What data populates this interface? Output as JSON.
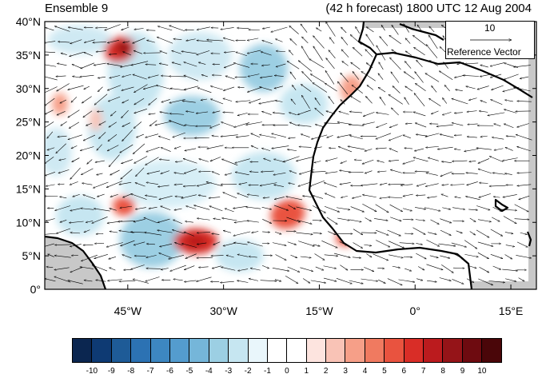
{
  "title": {
    "left": "Ensemble 9",
    "right": "(42 h forecast) 1800 UTC 12 Aug 2004"
  },
  "map": {
    "lat_labels": [
      "40°N",
      "35°N",
      "30°N",
      "25°N",
      "20°N",
      "15°N",
      "10°N",
      "5°N",
      "0°"
    ],
    "lon_labels": [
      "45°W",
      "30°W",
      "15°W",
      "0°",
      "15°E"
    ],
    "lon_range": [
      -58,
      19
    ],
    "lat_range": [
      0,
      40
    ],
    "land_color": "#c8c8c8",
    "coast_color": "#000000"
  },
  "reference_vector": {
    "magnitude": "10",
    "label": "Reference Vector"
  },
  "colorbar": {
    "colors": [
      "#0b2650",
      "#0e3a73",
      "#1e5b97",
      "#2c72b3",
      "#3d87c1",
      "#549cce",
      "#75b6d9",
      "#9ccfe3",
      "#c6e6f1",
      "#e9f6fb",
      "#ffffff",
      "#ffffff",
      "#fde4df",
      "#f9c3b6",
      "#f69f88",
      "#f07a60",
      "#e9533f",
      "#d92d27",
      "#bb1b1e",
      "#951418",
      "#6e0b10",
      "#4a0609"
    ],
    "labels": [
      "-10",
      "-9",
      "-8",
      "-7",
      "-6",
      "-5",
      "-4",
      "-3",
      "-2",
      "-1",
      "0",
      "1",
      "2",
      "3",
      "4",
      "5",
      "6",
      "7",
      "8",
      "9",
      "10"
    ]
  }
}
